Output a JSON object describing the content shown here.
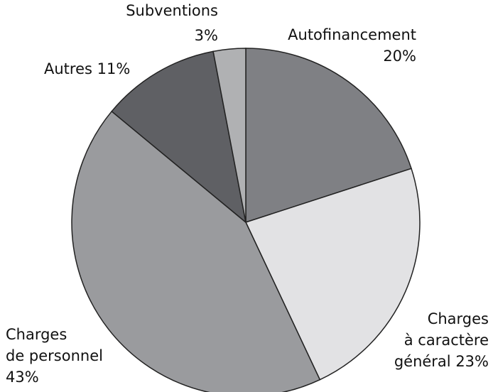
{
  "chart_data": {
    "type": "pie",
    "categories": [
      "Autofinancement",
      "Charges à caractère général",
      "Charges de personnel",
      "Autres",
      "Subventions"
    ],
    "values": [
      20,
      23,
      43,
      11,
      3
    ],
    "value_labels": [
      "20%",
      "23%",
      "43%",
      "11%",
      "3%"
    ],
    "colors": [
      "#7f8084",
      "#e2e2e4",
      "#9a9b9e",
      "#5f6064",
      "#b0b1b3"
    ]
  }
}
